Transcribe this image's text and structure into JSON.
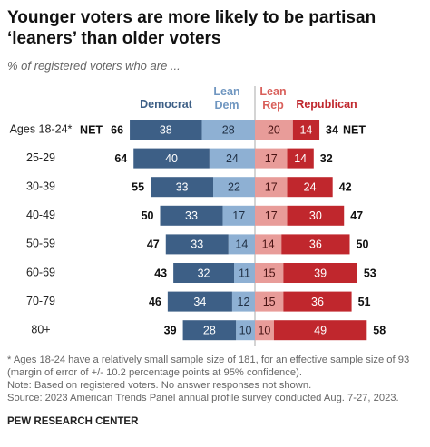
{
  "chart_data": {
    "type": "diverging_bar",
    "title": "Younger voters are more likely to be partisan ‘leaners’ than older voters",
    "subtitle": "% of registered voters who are ...",
    "categories": [
      "Ages 18-24*",
      "25-29",
      "30-39",
      "40-49",
      "50-59",
      "60-69",
      "70-79",
      "80+"
    ],
    "series": [
      {
        "name": "Democrat",
        "side": "left",
        "color": "#3d5f86",
        "text_color": "#ffffff",
        "values": [
          38,
          40,
          33,
          33,
          33,
          32,
          34,
          28
        ]
      },
      {
        "name": "Lean Dem",
        "side": "left",
        "color": "#8eb0d3",
        "text_color": "#1f2f44",
        "values": [
          28,
          24,
          22,
          17,
          14,
          11,
          12,
          10
        ]
      },
      {
        "name": "Lean Rep",
        "side": "right",
        "color": "#e89c99",
        "text_color": "#4a1414",
        "values": [
          20,
          17,
          17,
          17,
          14,
          15,
          15,
          10
        ]
      },
      {
        "name": "Republican",
        "side": "right",
        "color": "#c0272d",
        "text_color": "#ffffff",
        "values": [
          14,
          14,
          24,
          30,
          36,
          39,
          36,
          49
        ]
      }
    ],
    "net": {
      "label": "NET",
      "left": [
        66,
        64,
        55,
        50,
        47,
        43,
        46,
        39
      ],
      "right": [
        34,
        32,
        42,
        47,
        50,
        53,
        51,
        58
      ]
    },
    "notes": [
      "* Ages 18-24 have a relatively small sample size of 181, for an effective sample size of 93 (margin of error of +/- 10.2 percentage points at 95% confidence).",
      "Note: Based on registered voters. No answer responses not shown.",
      "Source: 2023 American Trends Panel annual profile survey conducted Aug. 7-27, 2023."
    ],
    "credit": "PEW RESEARCH CENTER"
  }
}
